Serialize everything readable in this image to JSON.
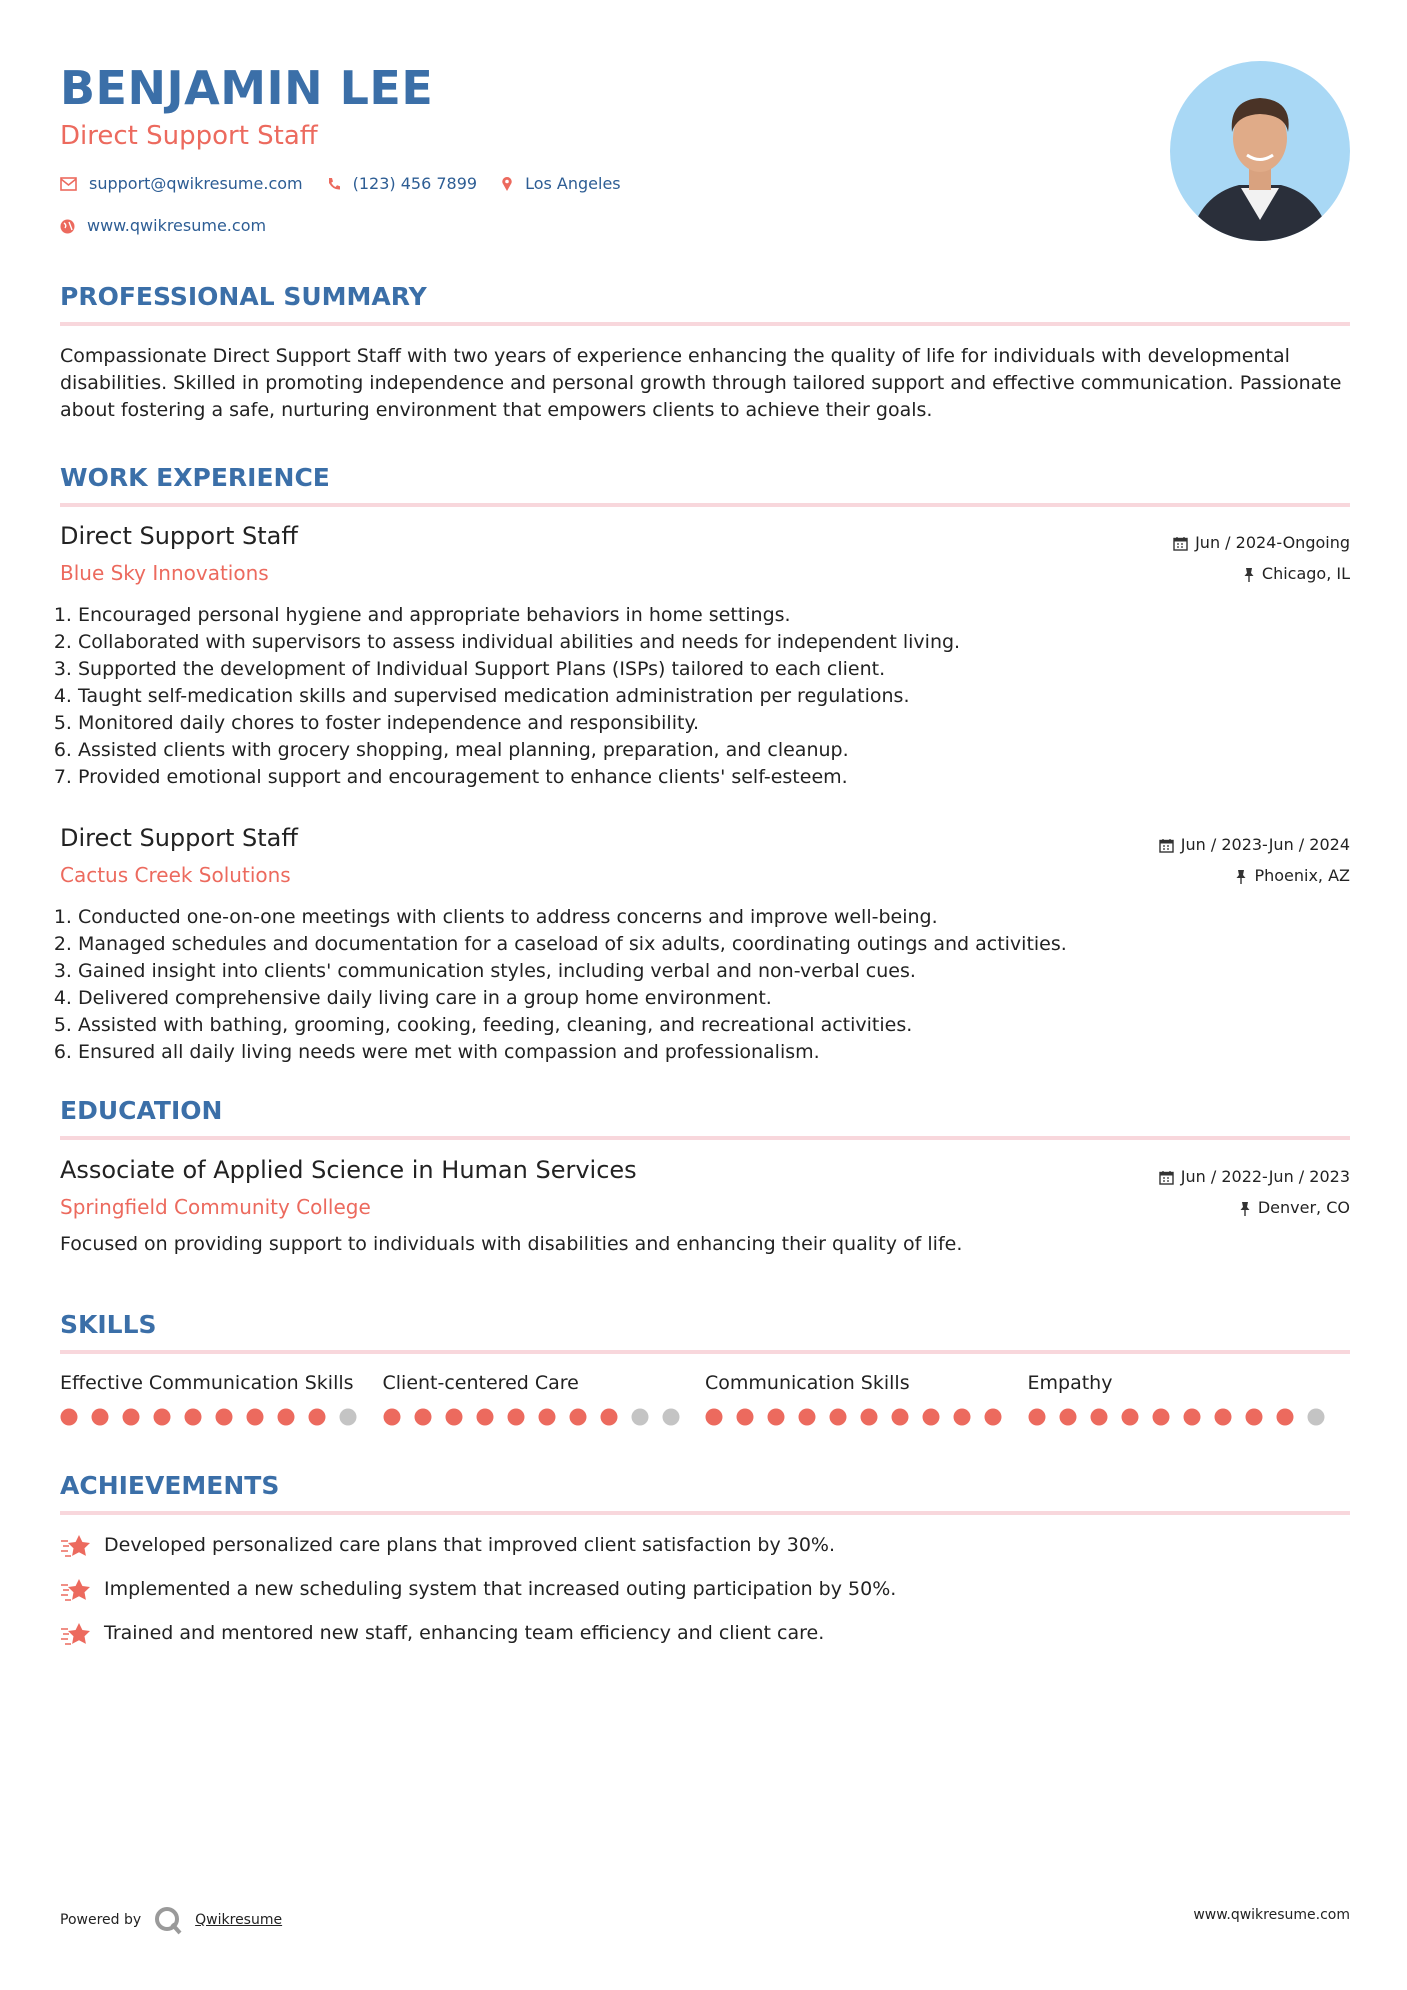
{
  "header": {
    "name": "BENJAMIN LEE",
    "title": "Direct Support Staff",
    "contacts": {
      "email": "support@qwikresume.com",
      "phone": "(123) 456 7899",
      "location": "Los Angeles",
      "website": "www.qwikresume.com"
    }
  },
  "summary": {
    "heading": "PROFESSIONAL SUMMARY",
    "text": "Compassionate Direct Support Staff with two years of experience enhancing the quality of life for individuals with developmental disabilities. Skilled in promoting independence and personal growth through tailored support and effective communication. Passionate about fostering a safe, nurturing environment that empowers clients to achieve their goals."
  },
  "experience": {
    "heading": "WORK EXPERIENCE",
    "jobs": [
      {
        "title": "Direct Support Staff",
        "company": "Blue Sky Innovations",
        "date": "Jun / 2024-Ongoing",
        "location": "Chicago, IL",
        "bullets": [
          "Encouraged personal hygiene and appropriate behaviors in home settings.",
          "Collaborated with supervisors to assess individual abilities and needs for independent living.",
          "Supported the development of Individual Support Plans (ISPs) tailored to each client.",
          "Taught self-medication skills and supervised medication administration per regulations.",
          "Monitored daily chores to foster independence and responsibility.",
          "Assisted clients with grocery shopping, meal planning, preparation, and cleanup.",
          "Provided emotional support and encouragement to enhance clients' self-esteem."
        ]
      },
      {
        "title": "Direct Support Staff",
        "company": "Cactus Creek Solutions",
        "date": "Jun / 2023-Jun / 2024",
        "location": "Phoenix, AZ",
        "bullets": [
          "Conducted one-on-one meetings with clients to address concerns and improve well-being.",
          "Managed schedules and documentation for a caseload of six adults, coordinating outings and activities.",
          "Gained insight into clients' communication styles, including verbal and non-verbal cues.",
          "Delivered comprehensive daily living care in a group home environment.",
          "Assisted with bathing, grooming, cooking, feeding, cleaning, and recreational activities.",
          "Ensured all daily living needs were met with compassion and professionalism."
        ]
      }
    ]
  },
  "education": {
    "heading": "EDUCATION",
    "entries": [
      {
        "degree": "Associate of Applied Science in Human Services",
        "school": "Springfield Community College",
        "date": "Jun / 2022-Jun / 2023",
        "location": "Denver, CO",
        "description": "Focused on providing support to individuals with disabilities and enhancing their quality of life."
      }
    ]
  },
  "skills": {
    "heading": "SKILLS",
    "items": [
      {
        "name": "Effective Communication Skills",
        "rating": 9,
        "out_of": 10
      },
      {
        "name": "Client-centered Care",
        "rating": 8,
        "out_of": 10
      },
      {
        "name": "Communication Skills",
        "rating": 10,
        "out_of": 10
      },
      {
        "name": "Empathy",
        "rating": 9,
        "out_of": 10
      }
    ]
  },
  "achievements": {
    "heading": "ACHIEVEMENTS",
    "items": [
      "Developed personalized care plans that improved client satisfaction by 30%.",
      "Implemented a new scheduling system that increased outing participation by 50%.",
      "Trained and mentored new staff, enhancing team efficiency and client care."
    ]
  },
  "footer": {
    "powered_by": "Powered by",
    "brand": "Qwikresume",
    "website": "www.qwikresume.com"
  }
}
